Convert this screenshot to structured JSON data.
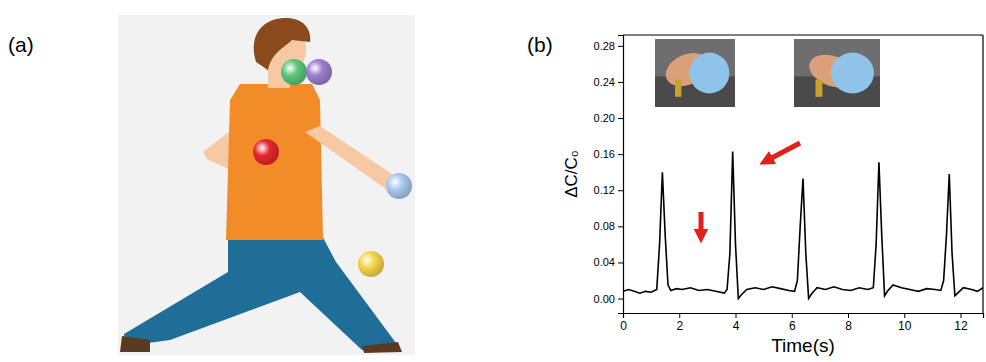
{
  "panel_labels": [
    "(a)",
    "(b)"
  ],
  "chart_data": {
    "type": "line",
    "x_label": "Time(s)",
    "y_label": "ΔC/C₀",
    "color": "#000000",
    "x": [
      0,
      0.2,
      0.4,
      0.6,
      0.8,
      1.0,
      1.2,
      1.3,
      1.4,
      1.5,
      1.6,
      1.7,
      1.9,
      2.1,
      2.4,
      2.7,
      3.0,
      3.3,
      3.6,
      3.7,
      3.8,
      3.9,
      4.0,
      4.1,
      4.2,
      4.4,
      4.7,
      5.0,
      5.3,
      5.6,
      5.9,
      6.1,
      6.2,
      6.3,
      6.4,
      6.5,
      6.6,
      6.7,
      6.9,
      7.2,
      7.5,
      7.8,
      8.1,
      8.4,
      8.7,
      8.9,
      9.0,
      9.1,
      9.2,
      9.3,
      9.4,
      9.6,
      9.9,
      10.2,
      10.5,
      10.8,
      11.1,
      11.3,
      11.4,
      11.5,
      11.6,
      11.7,
      11.8,
      11.9,
      12.1,
      12.4,
      12.6,
      12.8
    ],
    "values": [
      0.008,
      0.01,
      0.008,
      0.006,
      0.008,
      0.007,
      0.01,
      0.06,
      0.14,
      0.07,
      0.015,
      0.009,
      0.011,
      0.01,
      0.012,
      0.009,
      0.01,
      0.008,
      0.006,
      0.01,
      0.05,
      0.163,
      0.06,
      0.0,
      0.004,
      0.01,
      0.012,
      0.01,
      0.013,
      0.011,
      0.009,
      0.008,
      0.02,
      0.08,
      0.133,
      0.05,
      0.0,
      0.005,
      0.012,
      0.01,
      0.013,
      0.01,
      0.009,
      0.012,
      0.01,
      0.012,
      0.06,
      0.151,
      0.07,
      0.003,
      0.008,
      0.015,
      0.012,
      0.01,
      0.008,
      0.011,
      0.01,
      0.009,
      0.02,
      0.07,
      0.138,
      0.05,
      0.003,
      0.006,
      0.012,
      0.01,
      0.008,
      0.012
    ],
    "xlim": [
      0,
      12.8
    ],
    "ylim": [
      -0.016,
      0.292
    ],
    "xticks": [
      0,
      2,
      4,
      6,
      8,
      10,
      12
    ],
    "yticks": [
      {
        "value": 0,
        "label": "0.00"
      },
      {
        "value": 0.04,
        "label": "0.04"
      },
      {
        "value": 0.08,
        "label": "0.08"
      },
      {
        "value": 0.12,
        "label": "0.12"
      },
      {
        "value": 0.16,
        "label": "0.16"
      },
      {
        "value": 0.2,
        "label": "0.20"
      },
      {
        "value": 0.24,
        "label": "0.24"
      },
      {
        "value": 0.28,
        "label": "0.28"
      }
    ],
    "grid": false
  }
}
